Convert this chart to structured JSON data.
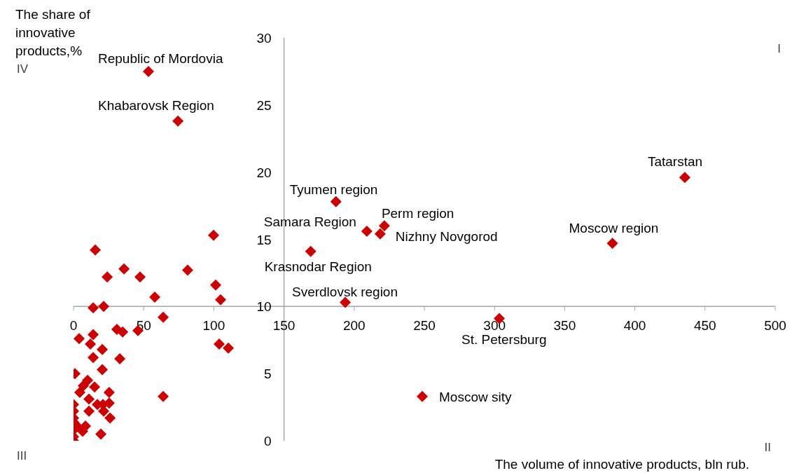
{
  "chart_data": {
    "type": "scatter",
    "xlabel": "The volume of innovative products, bln rub.",
    "ylabel": "The share of innovative products,%",
    "xlim": [
      0,
      500
    ],
    "xticks": [
      0,
      50,
      100,
      150,
      200,
      250,
      300,
      350,
      400,
      450,
      500
    ],
    "ylim": [
      0,
      30
    ],
    "yticks": [
      0,
      5,
      10,
      15,
      20,
      25,
      30
    ],
    "marker": "diamond",
    "series": [
      {
        "color": "#cc0000",
        "x": [
          53.4,
          74.4,
          435.6,
          187,
          384,
          209,
          221.5,
          218.5,
          169,
          193.6,
          303.4,
          248.5,
          99.8,
          15.5,
          36,
          81.3,
          24,
          47.4,
          101.3,
          57.9,
          104.8,
          14,
          21.5,
          63.9,
          30.9,
          35,
          45.9,
          4,
          14,
          12,
          103.8,
          110.3,
          20.5,
          14,
          33,
          20.5,
          1,
          63.9,
          10,
          7,
          15,
          4.5,
          25.4,
          11,
          25.4,
          17,
          21,
          0,
          11,
          21.5,
          0,
          26,
          0,
          8.5,
          0,
          0,
          6.5,
          19.5,
          0,
          0,
          2.5
        ],
        "values": [
          27.5,
          23.8,
          19.6,
          17.8,
          14.7,
          15.6,
          16.0,
          15.4,
          14.1,
          10.3,
          9.1,
          3.3,
          15.3,
          14.2,
          12.8,
          12.7,
          12.2,
          12.2,
          11.6,
          10.7,
          10.5,
          9.9,
          10.0,
          9.2,
          8.3,
          8.1,
          8.2,
          7.6,
          7.9,
          7.2,
          7.2,
          6.9,
          6.8,
          6.2,
          6.1,
          5.3,
          5.0,
          3.3,
          4.5,
          4.1,
          4.0,
          3.6,
          3.6,
          3.1,
          2.8,
          2.7,
          2.7,
          2.7,
          2.2,
          2.2,
          2.2,
          1.7,
          1.7,
          1.1,
          1.4,
          0.8,
          0.7,
          0.5,
          0.3,
          0.0,
          1.1
        ]
      }
    ],
    "annotations": [
      "I",
      "II",
      "III",
      "IV",
      {
        "text": "Republic of Mordovia",
        "x": 53.4,
        "y": 27.5
      },
      {
        "text": "Khabarovsk Region",
        "x": 74.4,
        "y": 23.8
      },
      {
        "text": "Tatarstan",
        "x": 435.6,
        "y": 19.6
      },
      {
        "text": "Tyumen region",
        "x": 187,
        "y": 17.8
      },
      {
        "text": "Moscow region",
        "x": 384,
        "y": 14.7
      },
      {
        "text": "Samara Region",
        "x": 209,
        "y": 15.6
      },
      {
        "text": "Perm region",
        "x": 221.5,
        "y": 16.0
      },
      {
        "text": "Nizhny Novgorod",
        "x": 218.5,
        "y": 15.4
      },
      {
        "text": "Krasnodar Region",
        "x": 169,
        "y": 14.1
      },
      {
        "text": "Sverdlovsk region",
        "x": 193.6,
        "y": 10.3
      },
      {
        "text": "St. Petersburg",
        "x": 303.4,
        "y": 9.1
      },
      {
        "text": "Moscow sity",
        "x": 248.5,
        "y": 3.3
      }
    ]
  }
}
